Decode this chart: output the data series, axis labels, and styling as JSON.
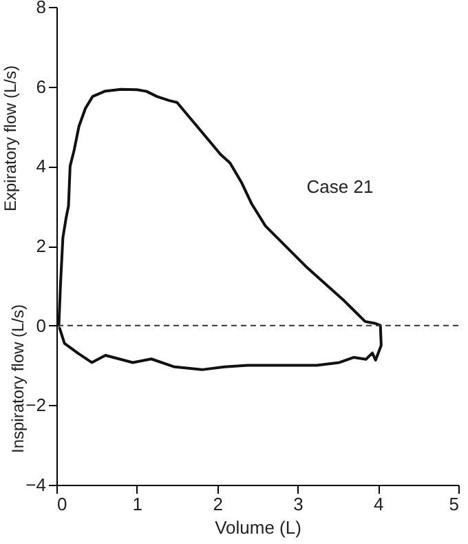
{
  "chart_data": {
    "type": "line",
    "xlabel": "Volume (L)",
    "ylabel": "Expiratory flow (L/s)",
    "annotations": [
      "Case 21",
      "Inspiratory flow (L/s)"
    ],
    "xlim": [
      0,
      5
    ],
    "xticks": [
      0,
      1,
      2,
      3,
      4,
      5
    ],
    "ylim": [
      -4,
      8
    ],
    "yticks": [
      -4,
      -2,
      0,
      2,
      4,
      6,
      8
    ],
    "line_style": "solid",
    "series": [
      {
        "color": "#111111",
        "x": [
          0.03,
          0.05,
          0.08,
          0.12,
          0.15,
          0.17,
          0.22,
          0.28,
          0.36,
          0.45,
          0.6,
          0.8,
          1.0,
          1.12,
          1.25,
          1.4,
          1.5,
          1.75,
          2.04,
          2.16,
          2.3,
          2.43,
          2.6,
          3.12,
          3.58,
          3.84,
          3.97,
          4.03,
          4.04,
          3.97,
          3.93,
          3.85,
          3.7,
          3.52,
          3.24,
          2.73,
          2.38,
          2.09,
          1.81,
          1.47,
          1.18,
          0.95,
          0.61,
          0.44,
          0.27,
          0.1,
          0.04
        ],
        "values": [
          0,
          1.0,
          2.2,
          2.7,
          3.0,
          4.0,
          4.4,
          5.0,
          5.45,
          5.75,
          5.88,
          5.93,
          5.92,
          5.88,
          5.75,
          5.65,
          5.6,
          5.0,
          4.3,
          4.08,
          3.6,
          3.05,
          2.5,
          1.45,
          0.62,
          0.1,
          0.05,
          0.0,
          -0.5,
          -0.87,
          -0.69,
          -0.85,
          -0.8,
          -0.93,
          -1.0,
          -1.0,
          -1.0,
          -1.04,
          -1.11,
          -1.04,
          -0.84,
          -0.93,
          -0.75,
          -0.93,
          -0.7,
          -0.45,
          -0.07
        ]
      }
    ],
    "ref_lines": [
      {
        "axis": "y",
        "value": 0,
        "color": "#333333",
        "line_style": "dashed"
      }
    ]
  }
}
